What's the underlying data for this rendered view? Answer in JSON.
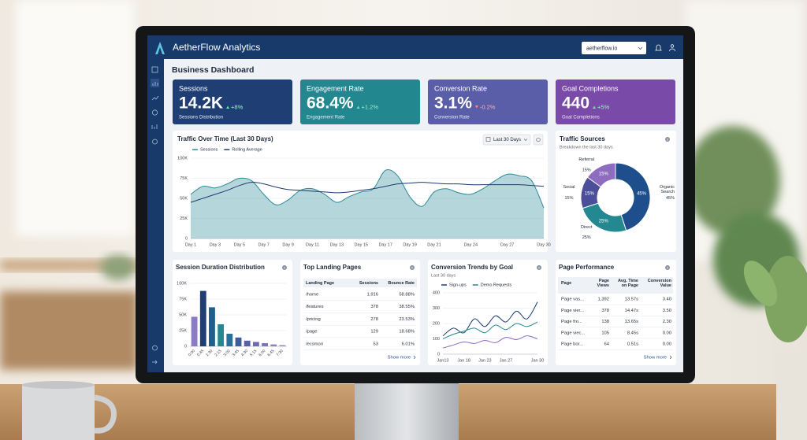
{
  "header": {
    "brand": "AetherFlow Analytics",
    "account": "aetherflow.io"
  },
  "page_title": "Business Dashboard",
  "kpis": [
    {
      "label": "Sessions",
      "value": "14.2K",
      "change": "+8%",
      "caption": "Sessions Distribution",
      "color": "#1f3f74"
    },
    {
      "label": "Engagement Rate",
      "value": "68.4%",
      "change": "+1.2%",
      "caption": "Engagement Rate",
      "color": "#22878f"
    },
    {
      "label": "Conversion Rate",
      "value": "3.1%",
      "change": "-0.2%",
      "caption": "Conversion Rate",
      "color": "#5a5ea8"
    },
    {
      "label": "Goal Completions",
      "value": "440",
      "change": "+5%",
      "caption": "Goal Completions",
      "color": "#7a4aa8"
    }
  ],
  "traffic": {
    "type": "line",
    "title": "Traffic Over Time (Last 30 Days)",
    "range": "Last 30 Days",
    "x": [
      1,
      2,
      3,
      4,
      5,
      6,
      7,
      8,
      9,
      10,
      11,
      12,
      13,
      14,
      15,
      16,
      17,
      18,
      19,
      20,
      21,
      22,
      23,
      24,
      25,
      26,
      27,
      28,
      29,
      30
    ],
    "xlim": [
      1,
      30
    ],
    "xticks": [
      {
        "value": 1,
        "label": "Day 1"
      },
      {
        "value": 3,
        "label": "Day 3"
      },
      {
        "value": 5,
        "label": "Day 5"
      },
      {
        "value": 7,
        "label": "Day 7"
      },
      {
        "value": 9,
        "label": "Day 9"
      },
      {
        "value": 11,
        "label": "Day 11"
      },
      {
        "value": 13,
        "label": "Day 13"
      },
      {
        "value": 15,
        "label": "Day 15"
      },
      {
        "value": 17,
        "label": "Day 17"
      },
      {
        "value": 19,
        "label": "Day 19"
      },
      {
        "value": 21,
        "label": "Day 21"
      },
      {
        "value": 24,
        "label": "Day 24"
      },
      {
        "value": 27,
        "label": "Day 27"
      },
      {
        "value": 30,
        "label": "Day 30"
      }
    ],
    "ylim": [
      0,
      100000
    ],
    "yticks": [
      0,
      {
        "value": 25000,
        "label": "25K"
      },
      {
        "value": 50000,
        "label": "50K"
      },
      {
        "value": 75000,
        "label": "75K"
      },
      {
        "value": 100000,
        "label": "100K"
      }
    ],
    "grid": true,
    "series": [
      {
        "name": "Sessions",
        "color": "#2b8b98",
        "area": true,
        "values": [
          55000,
          65000,
          63000,
          68000,
          75000,
          72000,
          55000,
          42000,
          48000,
          60000,
          62000,
          55000,
          45000,
          52000,
          58000,
          62000,
          85000,
          78000,
          52000,
          40000,
          58000,
          62000,
          57000,
          55000,
          62000,
          72000,
          80000,
          78000,
          72000,
          38000
        ]
      },
      {
        "name": "Rolling Average",
        "color": "#1e3a6e",
        "values": [
          45000,
          50000,
          55000,
          60000,
          66000,
          70000,
          68000,
          64000,
          61000,
          60000,
          59000,
          58000,
          57000,
          58000,
          60000,
          62000,
          65000,
          68000,
          69000,
          70000,
          69000,
          68000,
          68000,
          67000,
          67000,
          67000,
          67000,
          67000,
          66000,
          65000
        ]
      }
    ]
  },
  "sources": {
    "type": "pie",
    "title": "Traffic Sources",
    "subtitle": "Breakdown the last 30 days",
    "categories": [
      "Organic Search",
      "Direct",
      "Social",
      "Referral"
    ],
    "values": [
      45,
      25,
      15,
      15
    ],
    "value_labels": [
      "45%",
      "25%",
      "15%",
      "15%"
    ],
    "colors": [
      "#1f4e8c",
      "#23888f",
      "#4b4f9a",
      "#8e6cc0"
    ]
  },
  "duration": {
    "type": "bar",
    "title": "Session Duration Distribution",
    "categories": [
      "0:00",
      "0:45",
      "1:30",
      "2:15",
      "3:00",
      "3:45",
      "4:30",
      "5:15",
      "6:00",
      "6:45",
      "7:30"
    ],
    "values": [
      47000,
      88000,
      62000,
      35000,
      20000,
      14000,
      9000,
      7000,
      5000,
      3000,
      2000
    ],
    "colors": [
      "#8a7cc4",
      "#1f3f74",
      "#1f5f8c",
      "#23888f",
      "#2a6f9a",
      "#3f5a9e",
      "#5a5ea8",
      "#6b6db0",
      "#7d74b8",
      "#8c80bf",
      "#9a8ec6"
    ],
    "ylim": [
      0,
      100000
    ],
    "yticks": [
      0,
      {
        "value": 25000,
        "label": "25K"
      },
      {
        "value": 50000,
        "label": "50K"
      },
      {
        "value": 75000,
        "label": "75K"
      },
      {
        "value": 100000,
        "label": "100K"
      }
    ],
    "grid": true
  },
  "landing": {
    "title": "Top Landing Pages",
    "columns": [
      "Landing Page",
      "Sessions",
      "Bounce Rate"
    ],
    "rows": [
      [
        "/home",
        "1,916",
        "58.88%"
      ],
      [
        "/features",
        "378",
        "38.55%"
      ],
      [
        "/pricing",
        "278",
        "23.53%"
      ],
      [
        "/page",
        "129",
        "18.68%"
      ],
      [
        "/ecsmori",
        "53",
        "6.01%"
      ]
    ],
    "more": "Show more"
  },
  "conversion": {
    "type": "line",
    "title": "Conversion Trends by Goal",
    "subtitle": "Last 30 days",
    "categories": [
      "Jan13",
      null,
      "Jan 18",
      null,
      "Jan 23",
      null,
      "Jan 27",
      null,
      null,
      "Jan 30"
    ],
    "ylim": [
      0,
      400
    ],
    "yticks": [
      0,
      100,
      200,
      300,
      400
    ],
    "grid": true,
    "series": [
      {
        "name": "Sign-ups",
        "color": "#1f3f74",
        "values": [
          120,
          170,
          140,
          230,
          180,
          250,
          210,
          280,
          230,
          340
        ]
      },
      {
        "name": "Demo Requests",
        "color": "#23888f",
        "values": [
          100,
          130,
          150,
          170,
          140,
          190,
          160,
          200,
          180,
          210
        ]
      },
      {
        "color": "#8e6cc0",
        "values": [
          40,
          60,
          80,
          70,
          90,
          75,
          110,
          95,
          120,
          100
        ]
      }
    ]
  },
  "performance": {
    "title": "Page Performance",
    "columns": [
      "Page",
      "Page Views",
      "Avg. Time on Page",
      "Conversion Value"
    ],
    "rows": [
      [
        "Page vas...",
        "1,392",
        "13.57s",
        "3.40"
      ],
      [
        "Page vier...",
        "378",
        "14.47s",
        "3.50"
      ],
      [
        "Page fro...",
        "138",
        "13.65s",
        "2.30"
      ],
      [
        "Page viec...",
        "105",
        "8.45s",
        "0.00"
      ],
      [
        "Page bor...",
        "64",
        "0.51s",
        "0.00"
      ]
    ],
    "more": "Show more"
  }
}
